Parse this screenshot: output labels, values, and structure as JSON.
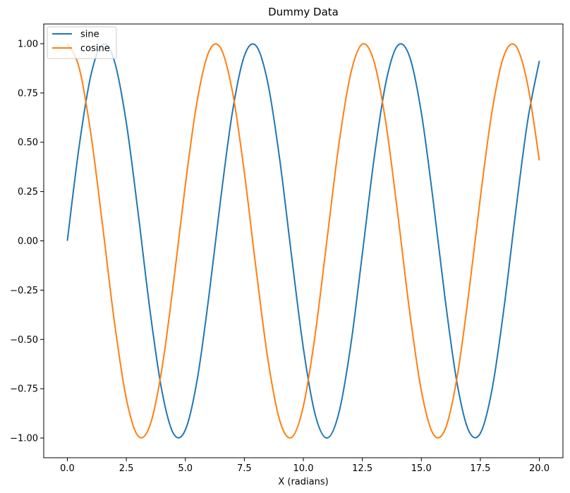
{
  "chart_data": {
    "type": "line",
    "title": "Dummy Data",
    "xlabel": "X (radians)",
    "ylabel": "",
    "xlim": [
      -1.0,
      21.0
    ],
    "ylim": [
      -1.1,
      1.1
    ],
    "xticks": [
      0.0,
      2.5,
      5.0,
      7.5,
      10.0,
      12.5,
      15.0,
      17.5,
      20.0
    ],
    "xtick_labels": [
      "0.0",
      "2.5",
      "5.0",
      "7.5",
      "10.0",
      "12.5",
      "15.0",
      "17.5",
      "20.0"
    ],
    "yticks": [
      1.0,
      0.75,
      0.5,
      0.25,
      0.0,
      -0.25,
      -0.5,
      -0.75,
      -1.0
    ],
    "ytick_labels": [
      "1.00",
      "0.75",
      "0.50",
      "0.25",
      "0.00",
      "−0.25",
      "−0.50",
      "−0.75",
      "−1.00"
    ],
    "grid": false,
    "legend_position": "top-left",
    "x": [
      0.0,
      0.5,
      1.0,
      1.5,
      2.0,
      2.5,
      3.0,
      3.5,
      4.0,
      4.5,
      5.0,
      5.5,
      6.0,
      6.5,
      7.0,
      7.5,
      8.0,
      8.5,
      9.0,
      9.5,
      10.0,
      10.5,
      11.0,
      11.5,
      12.0,
      12.5,
      13.0,
      13.5,
      14.0,
      14.5,
      15.0,
      15.5,
      16.0,
      16.5,
      17.0,
      17.5,
      18.0,
      18.5,
      19.0,
      19.5,
      20.0
    ],
    "series": [
      {
        "name": "sine",
        "color": "#1f77b4",
        "values": [
          0.0,
          0.479,
          0.841,
          0.997,
          0.909,
          0.598,
          0.141,
          -0.351,
          -0.757,
          -0.978,
          -0.959,
          -0.706,
          -0.279,
          0.215,
          0.657,
          0.938,
          0.989,
          0.798,
          0.412,
          -0.075,
          -0.544,
          -0.88,
          -1.0,
          -0.875,
          -0.537,
          -0.066,
          0.42,
          0.804,
          0.991,
          0.935,
          0.65,
          0.206,
          -0.288,
          -0.712,
          -0.961,
          -0.976,
          -0.751,
          -0.342,
          0.15,
          0.605,
          0.913
        ]
      },
      {
        "name": "cosine",
        "color": "#ff7f0e",
        "values": [
          1.0,
          0.878,
          0.54,
          0.071,
          -0.416,
          -0.801,
          -0.99,
          -0.936,
          -0.654,
          -0.211,
          0.284,
          0.709,
          0.96,
          0.977,
          0.754,
          0.347,
          -0.146,
          -0.602,
          -0.911,
          -0.997,
          -0.839,
          -0.476,
          0.004,
          0.484,
          0.844,
          0.998,
          0.907,
          0.595,
          0.137,
          -0.355,
          -0.76,
          -0.979,
          -0.958,
          -0.702,
          -0.275,
          0.219,
          0.66,
          0.939,
          0.989,
          0.795,
          0.408
        ]
      }
    ]
  }
}
